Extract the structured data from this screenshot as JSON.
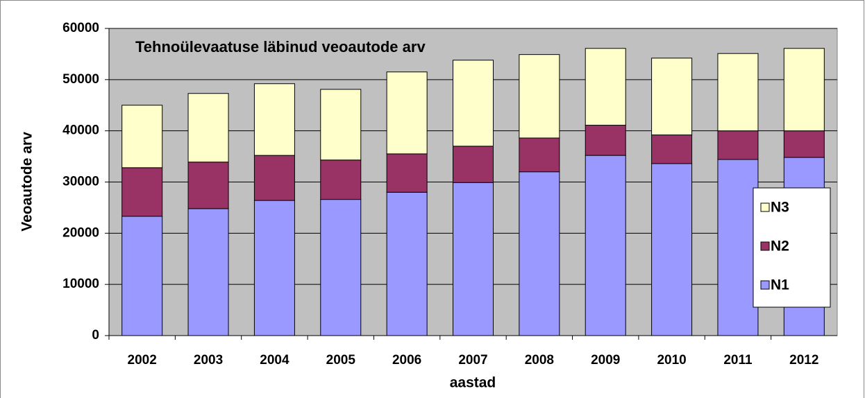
{
  "chart_data": {
    "type": "stacked_bar",
    "title": "Tehnoülevaatuse läbinud veoautode arv",
    "y_label": "Veoautode arv",
    "x_label": "aastad",
    "categories": [
      "2002",
      "2003",
      "2004",
      "2005",
      "2006",
      "2007",
      "2008",
      "2009",
      "2010",
      "2011",
      "2012"
    ],
    "series": [
      {
        "name": "N1",
        "color": "#9999ff",
        "values": [
          23300,
          24800,
          26400,
          26600,
          28000,
          29900,
          32000,
          35200,
          33600,
          34400,
          34800
        ]
      },
      {
        "name": "N2",
        "color": "#993366",
        "values": [
          9500,
          9100,
          8800,
          7700,
          7500,
          7100,
          6600,
          5900,
          5600,
          5600,
          5200
        ]
      },
      {
        "name": "N3",
        "color": "#ffffcc",
        "values": [
          12200,
          13400,
          14000,
          13800,
          16000,
          16800,
          16300,
          15000,
          15000,
          15100,
          16100
        ]
      }
    ],
    "ylim": [
      0,
      60000
    ],
    "yticks": [
      0,
      10000,
      20000,
      30000,
      40000,
      50000,
      60000
    ],
    "grid": true
  }
}
